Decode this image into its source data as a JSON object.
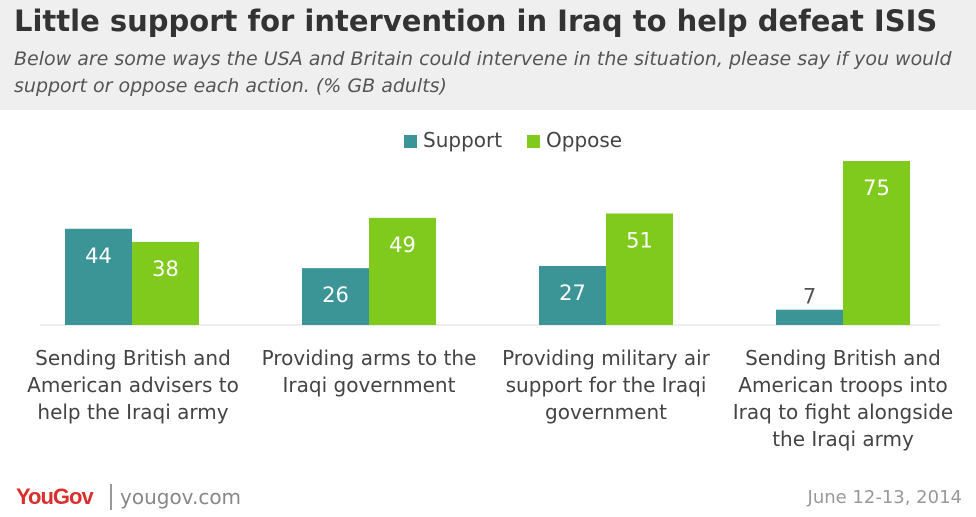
{
  "header": {
    "title": "Little support for intervention in Iraq to help defeat ISIS",
    "subtitle": "Below are some ways the USA and Britain could intervene in the situation, please say if you would support or oppose each action. (% GB adults)"
  },
  "legend": [
    {
      "label": "Support",
      "color": "#3b9496"
    },
    {
      "label": "Oppose",
      "color": "#7fca1c"
    }
  ],
  "chart_data": {
    "type": "bar",
    "categories": [
      "Sending British and American advisers to help the Iraqi army",
      "Providing arms to the Iraqi government",
      "Providing military air support for the Iraqi government",
      "Sending British and American troops into Iraq to fight alongside the Iraqi army"
    ],
    "series": [
      {
        "name": "Support",
        "color": "#3b9496",
        "values": [
          44,
          26,
          27,
          7
        ]
      },
      {
        "name": "Oppose",
        "color": "#7fca1c",
        "values": [
          38,
          49,
          51,
          75
        ]
      }
    ],
    "title": "Little support for intervention in Iraq to help defeat ISIS",
    "xlabel": "",
    "ylabel": "",
    "ylim": [
      0,
      75
    ],
    "grid": false,
    "legend_position": "top-center"
  },
  "footer": {
    "brand": "YouGov",
    "url": "yougov.com",
    "date": "June 12-13, 2014"
  }
}
